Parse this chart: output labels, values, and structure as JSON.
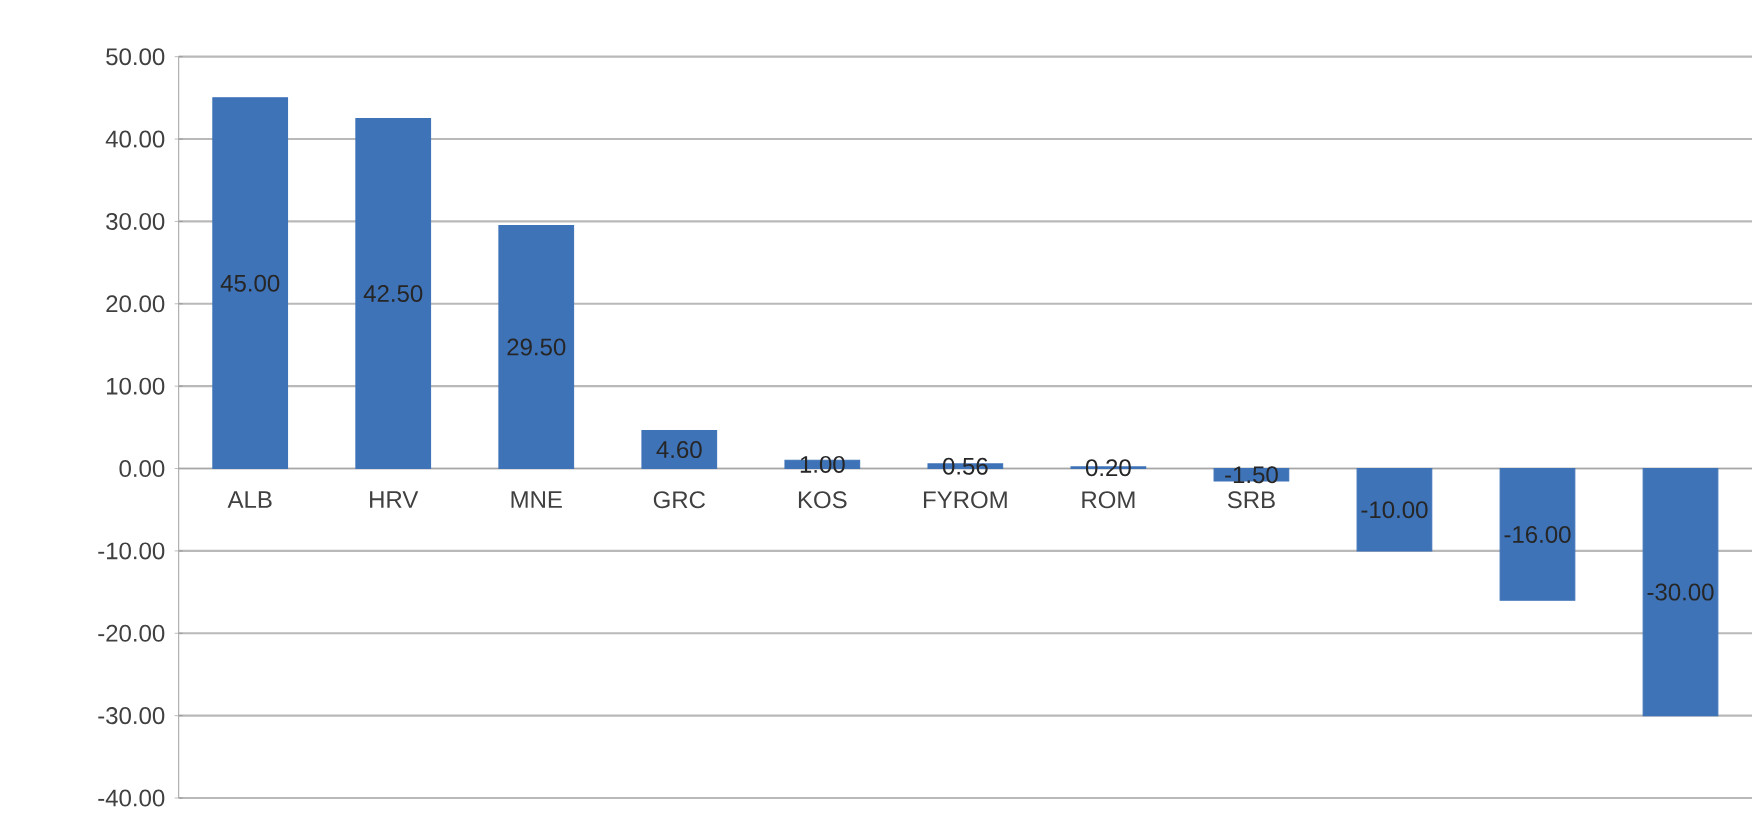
{
  "chart_data": {
    "type": "bar",
    "categories": [
      "ALB",
      "HRV",
      "MNE",
      "GRC",
      "KOS",
      "FYROM",
      "ROM",
      "SRB",
      null,
      null,
      null
    ],
    "values": [
      45.0,
      42.5,
      29.5,
      4.6,
      1.0,
      0.56,
      0.2,
      -1.5,
      -10.0,
      -16.0,
      -30.0
    ],
    "color": "#3f73b8",
    "ylim": [
      -40,
      50
    ],
    "yticks": [
      {
        "value": -40,
        "label": "-40.00"
      },
      {
        "value": -30,
        "label": "-30.00"
      },
      {
        "value": -20,
        "label": "-20.00"
      },
      {
        "value": -10,
        "label": "-10.00"
      },
      {
        "value": 0,
        "label": "0.00"
      },
      {
        "value": 10,
        "label": "10.00"
      },
      {
        "value": 20,
        "label": "20.00"
      },
      {
        "value": 30,
        "label": "30.00"
      },
      {
        "value": 40,
        "label": "40.00"
      },
      {
        "value": 50,
        "label": "50.00"
      }
    ],
    "grid": "y",
    "value_labels": [
      "45.00",
      "42.50",
      "29.50",
      "4.60",
      "1.00",
      "0.56",
      "0.20",
      "-1.50",
      "-10.00",
      "-16.00",
      "-30.00"
    ]
  }
}
